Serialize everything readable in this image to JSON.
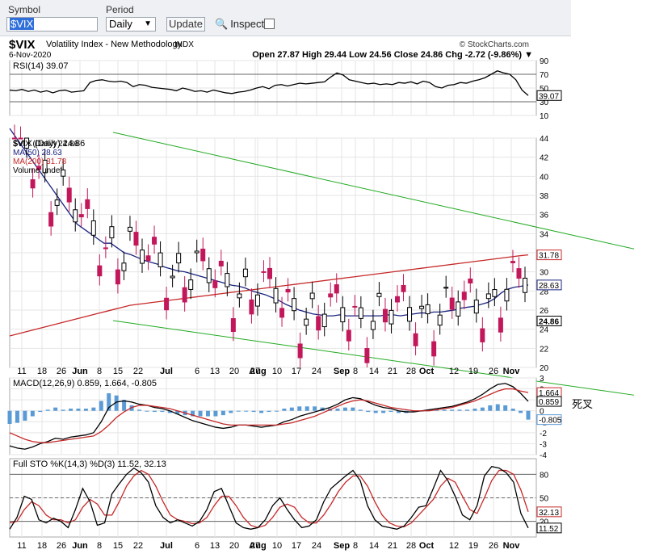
{
  "toolbar": {
    "symbol_label": "Symbol",
    "symbol_value": "$VIX",
    "period_label": "Period",
    "period_value": "Daily",
    "update_label": "Update",
    "inspect_label": "Inspect"
  },
  "header": {
    "title_symbol": "$VIX",
    "title_desc": "Volatility Index - New Methodology",
    "exchange": "INDX",
    "date": "6-Nov-2020",
    "watermark": "© StockCharts.com",
    "ohlc": "Open 27.87  High 29.44  Low 24.56  Close 24.86  Chg -2.72 (-9.86%) ▼"
  },
  "annotation": "死叉",
  "x_ticks": [
    "11",
    "18",
    "26",
    "Jun",
    "8",
    "15",
    "22",
    "Jul",
    "6",
    "13",
    "20",
    "27",
    "Aug",
    "10",
    "17",
    "24",
    "Sep",
    "8",
    "14",
    "21",
    "28",
    "Oct",
    "12",
    "19",
    "26",
    "Nov"
  ],
  "chart_data": [
    {
      "type": "line",
      "title": "RSI(14) 39.07",
      "ylim": [
        10,
        90
      ],
      "y_ticks": [
        90,
        70,
        50,
        30,
        10
      ],
      "reference_lines": [
        70,
        30
      ],
      "last_value": 39.07,
      "series": [
        {
          "name": "RSI(14)",
          "values": [
            47,
            46,
            48,
            45,
            47,
            44,
            46,
            43,
            46,
            47,
            44,
            45,
            46,
            58,
            61,
            62,
            60,
            59,
            60,
            58,
            52,
            55,
            54,
            51,
            50,
            49,
            48,
            46,
            50,
            48,
            45,
            46,
            44,
            47,
            45,
            43,
            42,
            44,
            45,
            47,
            50,
            52,
            49,
            54,
            55,
            53,
            55,
            57,
            56,
            57,
            58,
            59,
            66,
            72,
            69,
            62,
            60,
            58,
            56,
            57,
            55,
            56,
            55,
            58,
            57,
            59,
            56,
            60,
            58,
            52,
            50,
            54,
            55,
            58,
            57,
            60,
            62,
            65,
            70,
            75,
            72,
            70,
            62,
            47,
            39.07
          ]
        }
      ]
    },
    {
      "type": "candlestick",
      "title": "$VIX (Daily) 24.86",
      "ylim": [
        20,
        44
      ],
      "y_ticks": [
        44,
        42,
        40,
        38,
        36,
        34,
        32,
        30,
        28,
        26,
        24,
        22,
        20
      ],
      "legend": [
        "$VIX (Daily) 24.86",
        "MA(50) 28.63",
        "MA(200) 31.78",
        "Volume undef"
      ],
      "ma50_last": 28.63,
      "ma200_last": 31.78,
      "close_last": 24.86,
      "series": [
        {
          "name": "MA(50)",
          "values": [
            45,
            44,
            43,
            42,
            41,
            40,
            39,
            38,
            37,
            36,
            35,
            34.5,
            34,
            33.5,
            33,
            33,
            32.5,
            32,
            31.8,
            31.5,
            31.2,
            31,
            30.8,
            30.5,
            30.3,
            30.1,
            30,
            29.8,
            29.6,
            29.4,
            29.2,
            29,
            28.8,
            28.6,
            28.5,
            28.3,
            28,
            27.8,
            27.6,
            27.3,
            27,
            26.6,
            26.3,
            26,
            25.8,
            25.6,
            25.5,
            25.4,
            25.4,
            25.5,
            25.4,
            25.4,
            25.4,
            25.4,
            25.4,
            25.4,
            25.5,
            25.5,
            25.4,
            25.5,
            25.6,
            25.7,
            25.7,
            25.8,
            25.8,
            25.9,
            26,
            26.2,
            26.3,
            26.4,
            26.6,
            26.8,
            27.2,
            27.8,
            28.2,
            28.4,
            28.5,
            28.63
          ]
        },
        {
          "name": "MA(200)",
          "values": [
            23.3,
            23.5,
            23.7,
            23.9,
            24.1,
            24.3,
            24.5,
            24.7,
            24.9,
            25.1,
            25.3,
            25.5,
            25.7,
            25.9,
            26.1,
            26.3,
            26.5,
            26.6,
            26.7,
            26.8,
            26.9,
            27,
            27.1,
            27.2,
            27.3,
            27.4,
            27.5,
            27.6,
            27.7,
            27.8,
            27.9,
            28,
            28.1,
            28.2,
            28.3,
            28.4,
            28.5,
            28.6,
            28.7,
            28.8,
            28.9,
            29,
            29.1,
            29.2,
            29.3,
            29.4,
            29.5,
            29.6,
            29.7,
            29.8,
            29.9,
            30,
            30.1,
            30.2,
            30.3,
            30.4,
            30.5,
            30.6,
            30.7,
            30.8,
            30.9,
            31,
            31.1,
            31.2,
            31.3,
            31.4,
            31.5,
            31.6,
            31.7,
            31.78
          ]
        }
      ],
      "trendlines": [
        {
          "from": [
            0,
            44.6
          ],
          "to": [
            1,
            32.4
          ]
        },
        {
          "from": [
            0,
            24.9
          ],
          "to": [
            1,
            17.1
          ]
        }
      ]
    },
    {
      "type": "line",
      "title": "MACD(12,26,9) 0.859, 1.664, -0.805",
      "ylim": [
        -4,
        3
      ],
      "y_ticks": [
        3,
        2,
        1,
        0,
        -1,
        -2,
        -3,
        -4
      ],
      "labels": {
        "macd": 0.859,
        "signal": 1.664,
        "hist": -0.805
      },
      "series": [
        {
          "name": "MACD",
          "values": [
            -3.2,
            -3.4,
            -3.5,
            -3.3,
            -3.0,
            -2.8,
            -2.5,
            -2.6,
            -2.4,
            -2.3,
            -2.2,
            -2.0,
            -1.0,
            0.3,
            0.8,
            0.9,
            0.8,
            0.6,
            0.5,
            0.3,
            0.2,
            0.0,
            -0.3,
            -0.6,
            -0.9,
            -1.1,
            -1.3,
            -1.5,
            -1.6,
            -1.5,
            -1.3,
            -1.3,
            -1.4,
            -1.5,
            -1.4,
            -1.3,
            -1.0,
            -0.8,
            -0.5,
            -0.3,
            -0.1,
            0.1,
            0.3,
            0.6,
            1.0,
            1.2,
            1.1,
            0.8,
            0.5,
            0.3,
            0.2,
            0.0,
            -0.1,
            -0.1,
            0.0,
            0.1,
            0.2,
            0.3,
            0.4,
            0.6,
            0.8,
            1.1,
            1.5,
            2.0,
            2.4,
            2.5,
            2.2,
            1.6,
            0.859
          ]
        },
        {
          "name": "Signal",
          "values": [
            -2.0,
            -2.3,
            -2.6,
            -2.8,
            -2.9,
            -2.9,
            -2.8,
            -2.7,
            -2.6,
            -2.5,
            -2.4,
            -2.3,
            -1.9,
            -1.3,
            -0.6,
            -0.1,
            0.3,
            0.5,
            0.5,
            0.4,
            0.3,
            0.2,
            0.0,
            -0.2,
            -0.4,
            -0.6,
            -0.8,
            -1.0,
            -1.2,
            -1.3,
            -1.3,
            -1.3,
            -1.3,
            -1.3,
            -1.3,
            -1.3,
            -1.2,
            -1.1,
            -0.9,
            -0.7,
            -0.5,
            -0.2,
            0.1,
            0.4,
            0.7,
            0.9,
            1.0,
            0.9,
            0.7,
            0.5,
            0.3,
            0.2,
            0.1,
            0.0,
            0.0,
            0.0,
            0.1,
            0.2,
            0.3,
            0.5,
            0.7,
            0.9,
            1.2,
            1.5,
            1.8,
            2.0,
            2.0,
            1.8,
            1.664
          ]
        }
      ]
    },
    {
      "type": "line",
      "title": "Full STO %K(14,3) %D(3) 11.52, 32.13",
      "ylim": [
        0,
        100
      ],
      "y_ticks": [
        80,
        50,
        20
      ],
      "reference_lines": [
        80,
        50,
        20
      ],
      "labels": {
        "k": 11.52,
        "d": 32.13
      },
      "series": [
        {
          "name": "%K",
          "values": [
            10,
            25,
            52,
            48,
            22,
            18,
            24,
            20,
            12,
            35,
            62,
            45,
            15,
            18,
            55,
            68,
            80,
            88,
            82,
            70,
            40,
            25,
            18,
            22,
            18,
            14,
            20,
            35,
            58,
            62,
            40,
            18,
            12,
            10,
            12,
            22,
            40,
            50,
            35,
            22,
            12,
            14,
            22,
            45,
            62,
            70,
            78,
            85,
            72,
            40,
            22,
            14,
            12,
            10,
            14,
            25,
            38,
            40,
            62,
            85,
            72,
            52,
            28,
            22,
            40,
            78,
            90,
            88,
            82,
            70,
            30,
            11.52
          ]
        },
        {
          "name": "%D",
          "values": [
            18,
            20,
            35,
            45,
            40,
            28,
            22,
            22,
            18,
            22,
            38,
            48,
            42,
            28,
            28,
            45,
            65,
            78,
            85,
            80,
            65,
            45,
            28,
            22,
            20,
            17,
            18,
            25,
            40,
            52,
            52,
            40,
            25,
            15,
            12,
            15,
            25,
            38,
            42,
            38,
            25,
            18,
            18,
            28,
            42,
            58,
            70,
            78,
            78,
            65,
            45,
            28,
            18,
            14,
            13,
            18,
            28,
            38,
            48,
            65,
            75,
            70,
            52,
            35,
            30,
            50,
            72,
            85,
            85,
            80,
            60,
            32.13
          ]
        }
      ]
    }
  ]
}
